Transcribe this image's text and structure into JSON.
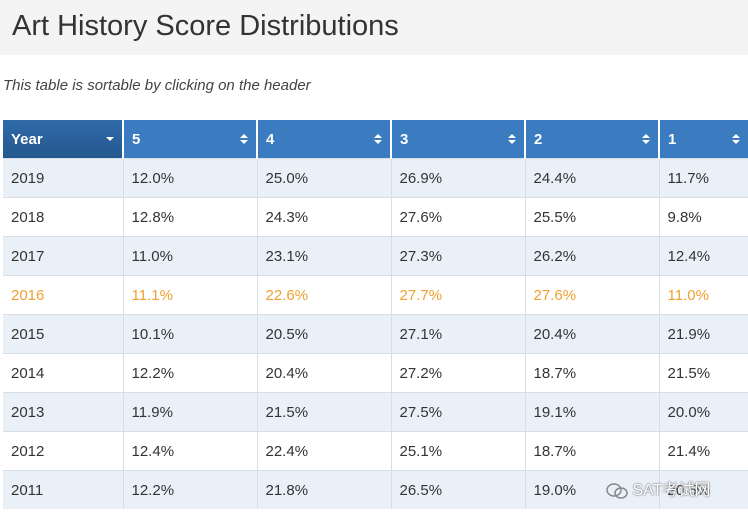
{
  "header": {
    "title": "Art History Score Distributions"
  },
  "note": "This table is sortable by clicking on the header",
  "table": {
    "columns": [
      "Year",
      "5",
      "4",
      "3",
      "2",
      "1"
    ],
    "rows": [
      [
        "2019",
        "12.0%",
        "25.0%",
        "26.9%",
        "24.4%",
        "11.7%"
      ],
      [
        "2018",
        "12.8%",
        "24.3%",
        "27.6%",
        "25.5%",
        "9.8%"
      ],
      [
        "2017",
        "11.0%",
        "23.1%",
        "27.3%",
        "26.2%",
        "12.4%"
      ],
      [
        "2016",
        "11.1%",
        "22.6%",
        "27.7%",
        "27.6%",
        "11.0%"
      ],
      [
        "2015",
        "10.1%",
        "20.5%",
        "27.1%",
        "20.4%",
        "21.9%"
      ],
      [
        "2014",
        "12.2%",
        "20.4%",
        "27.2%",
        "18.7%",
        "21.5%"
      ],
      [
        "2013",
        "11.9%",
        "21.5%",
        "27.5%",
        "19.1%",
        "20.0%"
      ],
      [
        "2012",
        "12.4%",
        "22.4%",
        "25.1%",
        "18.7%",
        "21.4%"
      ],
      [
        "2011",
        "12.2%",
        "21.8%",
        "26.5%",
        "19.0%",
        "20.5%"
      ]
    ]
  },
  "watermark": "SAT考试网"
}
